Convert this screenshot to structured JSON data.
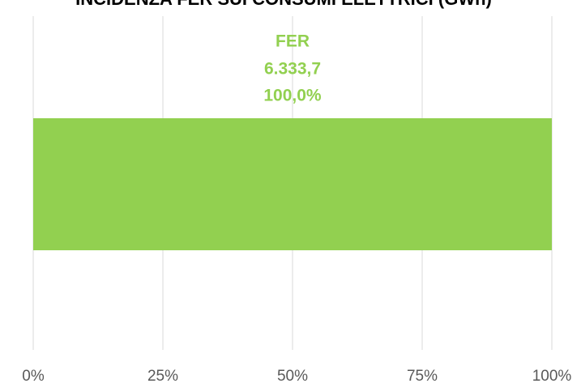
{
  "chart_data": {
    "type": "stacked-bar-horizontal",
    "title": "INCIDENZA FER SUI CONSUMI ELETTRICI (GWh)",
    "series": [
      {
        "name": "FER",
        "color": "#92d050",
        "values": [
          100
        ],
        "value_labels": [
          "100,0%"
        ],
        "amounts": [
          6333.7
        ],
        "amount_labels": [
          "6.333,7"
        ]
      }
    ],
    "xlim": [
      0,
      100
    ],
    "xticks": [
      {
        "value": 0,
        "label": "0%"
      },
      {
        "value": 25,
        "label": "25%"
      },
      {
        "value": 50,
        "label": "50%"
      },
      {
        "value": 75,
        "label": "75%"
      },
      {
        "value": 100,
        "label": "100%"
      }
    ],
    "grid": true
  }
}
